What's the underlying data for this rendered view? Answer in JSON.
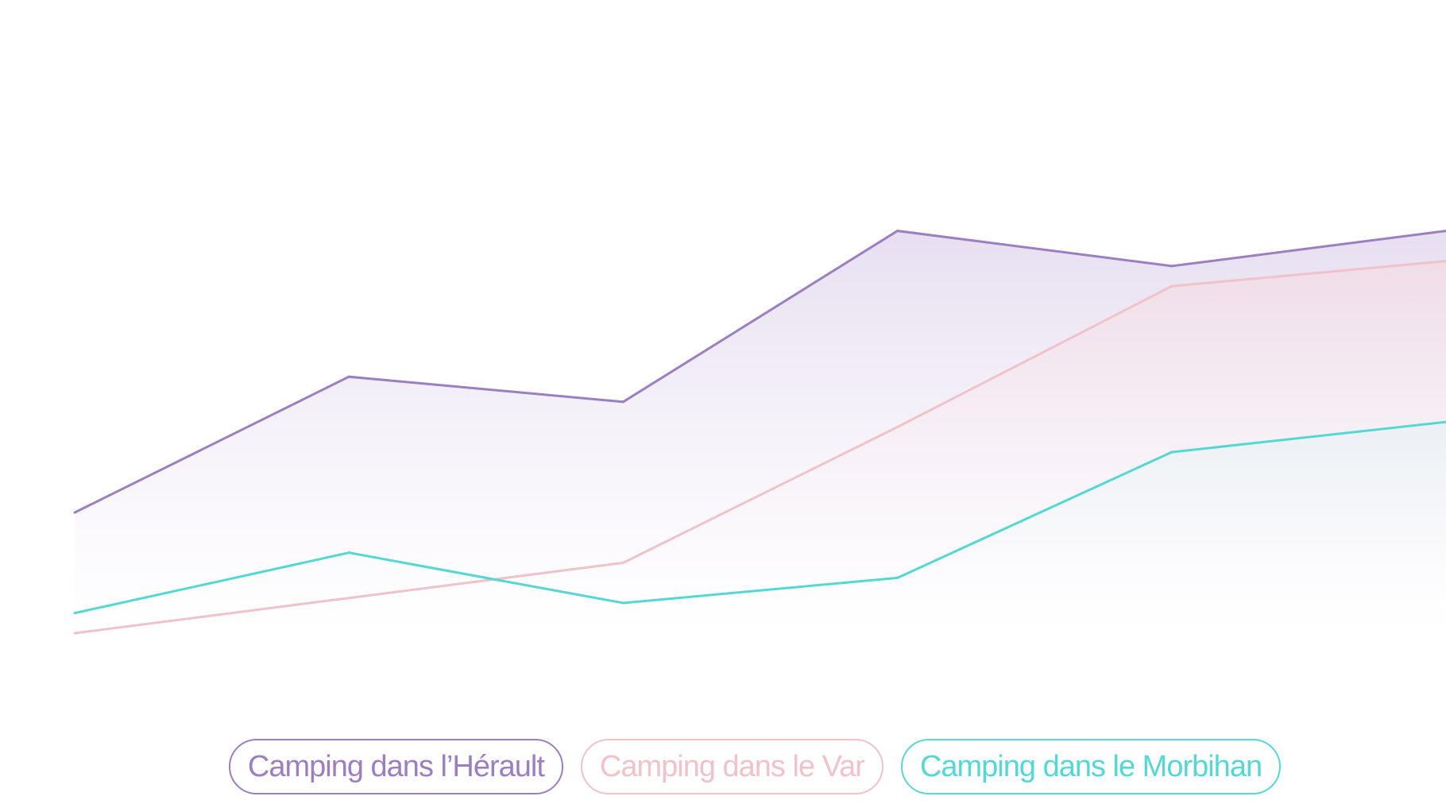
{
  "chart_data": {
    "type": "area",
    "x": [
      0,
      1,
      2,
      3,
      4,
      5
    ],
    "ylim": [
      0,
      100
    ],
    "grid": false,
    "legend_position": "bottom-center",
    "series": [
      {
        "name": "Camping dans l’Hérault",
        "color": "#9b7fc0",
        "values": [
          24,
          51,
          46,
          80,
          73,
          80
        ]
      },
      {
        "name": "Camping dans le Var",
        "color": "#f0c2ca",
        "values": [
          0,
          7,
          14,
          41,
          69,
          74
        ]
      },
      {
        "name": "Camping dans le Morbihan",
        "color": "#55d8d3",
        "values": [
          4,
          16,
          6,
          11,
          36,
          42
        ]
      }
    ]
  }
}
